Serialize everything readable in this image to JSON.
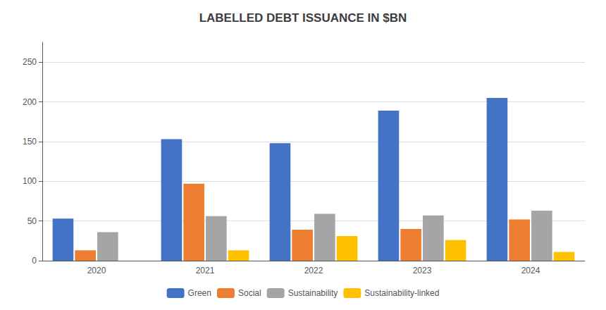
{
  "chart_data": {
    "type": "bar",
    "title": "LABELLED DEBT ISSUANCE IN $BN",
    "categories": [
      "2020",
      "2021",
      "2022",
      "2023",
      "2024"
    ],
    "series": [
      {
        "name": "Green",
        "color": "#4472C4",
        "values": [
          53,
          153,
          148,
          189,
          205
        ]
      },
      {
        "name": "Social",
        "color": "#ED7D31",
        "values": [
          13,
          97,
          39,
          40,
          52
        ]
      },
      {
        "name": "Sustainability",
        "color": "#A5A5A5",
        "values": [
          36,
          56,
          59,
          57,
          63
        ]
      },
      {
        "name": "Sustainability-linked",
        "color": "#FFC000",
        "values": [
          0,
          13,
          31,
          26,
          11
        ]
      }
    ],
    "ylim": [
      0,
      275
    ],
    "yticks": [
      0,
      50,
      100,
      150,
      200,
      250
    ],
    "grid": true,
    "legend": "bottom"
  }
}
